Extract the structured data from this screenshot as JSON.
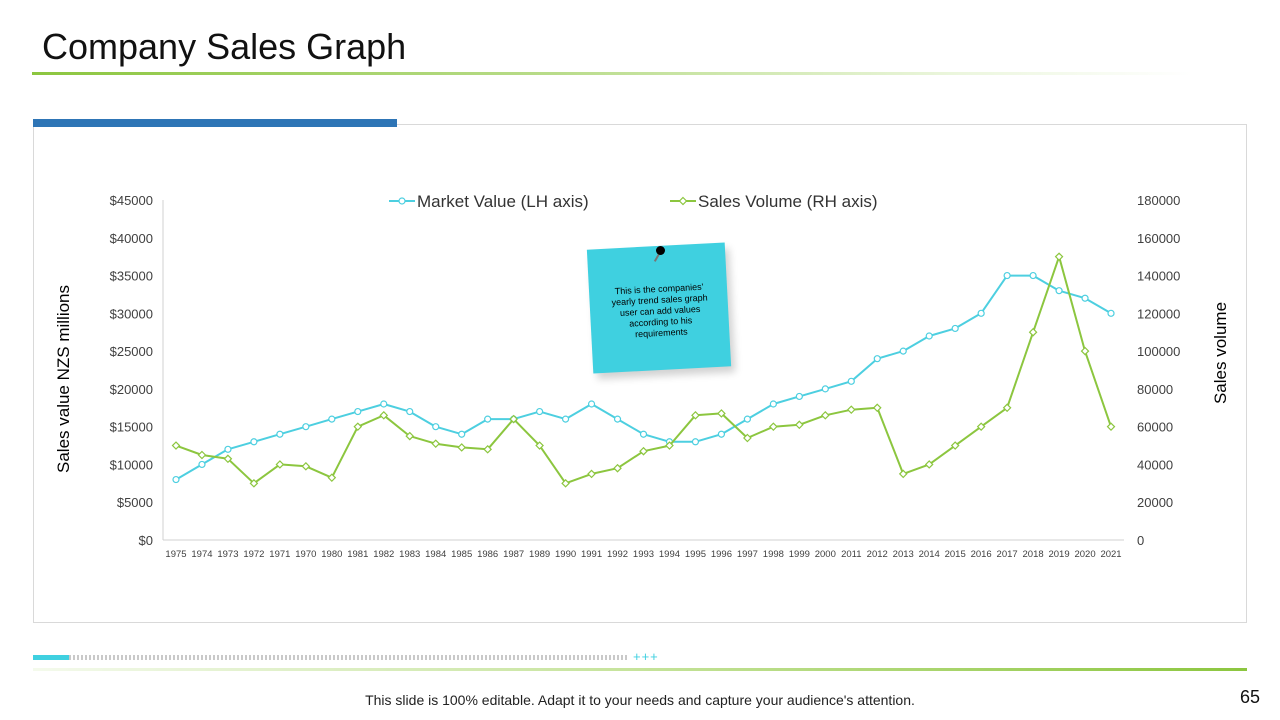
{
  "slide": {
    "title": "Company Sales Graph",
    "note_text": "This is the companies' yearly trend sales graph user can add values according to his requirements",
    "footer_text": "This slide is 100% editable. Adapt it to your needs and capture your audience's attention.",
    "footer_plus": "+++",
    "page_number": "65"
  },
  "colors": {
    "market_value": "#4dcfe0",
    "sales_volume": "#8cc63f",
    "accent_blue": "#2e75b6"
  },
  "chart_data": {
    "type": "line",
    "title": "",
    "legend_position": "top",
    "grid": false,
    "categories": [
      "1975",
      "1974",
      "1973",
      "1972",
      "1971",
      "1970",
      "1980",
      "1981",
      "1982",
      "1983",
      "1984",
      "1985",
      "1986",
      "1987",
      "1989",
      "1990",
      "1991",
      "1992",
      "1993",
      "1994",
      "1995",
      "1996",
      "1997",
      "1998",
      "1999",
      "2000",
      "2011",
      "2012",
      "2013",
      "2014",
      "2015",
      "2016",
      "2017",
      "2018",
      "2019",
      "2020",
      "2021"
    ],
    "y_left": {
      "label": "Sales value NZS millions",
      "range": [
        0,
        45000
      ],
      "ticks": [
        "$0",
        "$5000",
        "$10000",
        "$15000",
        "$20000",
        "$25000",
        "$30000",
        "$35000",
        "$40000",
        "$45000"
      ]
    },
    "y_right": {
      "label": "Sales  volume",
      "range": [
        0,
        180000
      ],
      "ticks": [
        "0",
        "20000",
        "40000",
        "60000",
        "80000",
        "100000",
        "120000",
        "140000",
        "160000",
        "180000"
      ]
    },
    "series": [
      {
        "name": "Market Value (LH axis)",
        "axis": "left",
        "values": [
          8000,
          10000,
          12000,
          13000,
          14000,
          15000,
          16000,
          17000,
          18000,
          17000,
          15000,
          14000,
          16000,
          16000,
          17000,
          16000,
          18000,
          16000,
          14000,
          13000,
          13000,
          14000,
          16000,
          18000,
          19000,
          20000,
          21000,
          24000,
          25000,
          27000,
          28000,
          30000,
          35000,
          35000,
          33000,
          32000,
          30000
        ]
      },
      {
        "name": "Sales Volume (RH axis)",
        "axis": "right",
        "values": [
          50000,
          45000,
          43000,
          30000,
          40000,
          39000,
          33000,
          60000,
          66000,
          55000,
          51000,
          49000,
          48000,
          64000,
          50000,
          30000,
          35000,
          38000,
          47000,
          50000,
          66000,
          67000,
          54000,
          60000,
          61000,
          66000,
          69000,
          70000,
          35000,
          40000,
          50000,
          60000,
          70000,
          110000,
          150000,
          100000,
          60000
        ]
      }
    ]
  }
}
